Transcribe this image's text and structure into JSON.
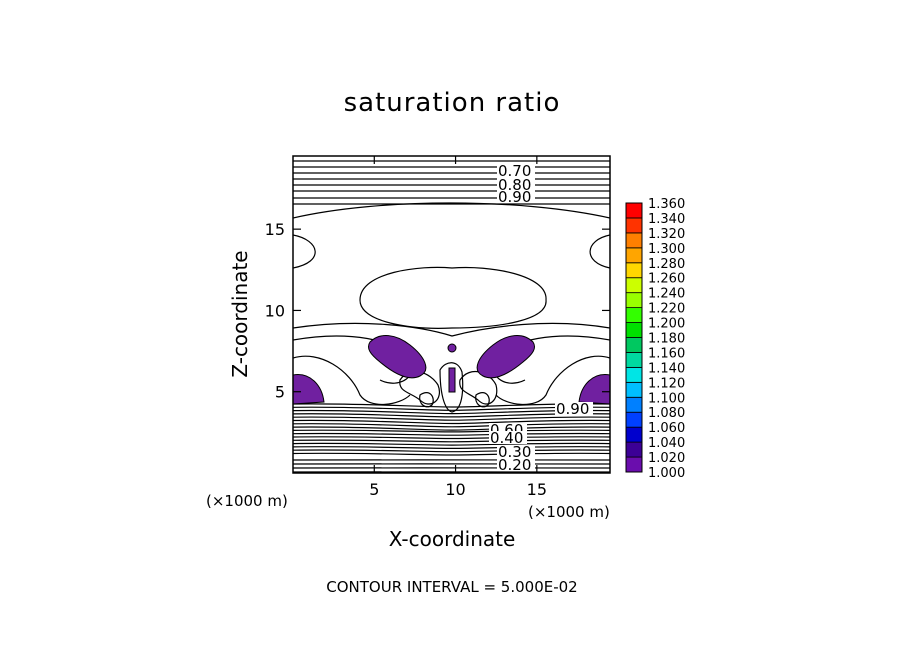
{
  "chart_data": {
    "type": "contour",
    "title": "saturation ratio",
    "xlabel": "X-coordinate",
    "ylabel": "Z-coordinate",
    "x_unit": "(×1000 m)",
    "y_unit": "(×1000 m)",
    "xlim": [
      0,
      19.5
    ],
    "ylim": [
      0,
      19.5
    ],
    "x_ticks": [
      5,
      10,
      15
    ],
    "y_ticks": [
      5,
      10,
      15
    ],
    "contour_interval_text": "CONTOUR INTERVAL = 5.000E-02",
    "contour_labels": [
      "0.70",
      "0.80",
      "0.90",
      "0.90",
      "0.60",
      "0.40",
      "0.30",
      "0.20"
    ],
    "colorbar": {
      "levels": [
        "1.000",
        "1.020",
        "1.040",
        "1.060",
        "1.080",
        "1.100",
        "1.120",
        "1.140",
        "1.160",
        "1.180",
        "1.200",
        "1.220",
        "1.240",
        "1.260",
        "1.280",
        "1.300",
        "1.320",
        "1.340",
        "1.360"
      ],
      "colors": [
        "#6a0dad",
        "#3c0096",
        "#0000cd",
        "#0040ff",
        "#0080ff",
        "#00bfff",
        "#00e5e5",
        "#00d9a0",
        "#00c860",
        "#00e000",
        "#33ff00",
        "#99ff00",
        "#ccff00",
        "#ffd700",
        "#ffa500",
        "#ff7f00",
        "#ff3300",
        "#ff0000",
        "#ff8080"
      ]
    },
    "supersaturated_color": "#7020a0",
    "grid": false,
    "legend": "colorbar right"
  }
}
